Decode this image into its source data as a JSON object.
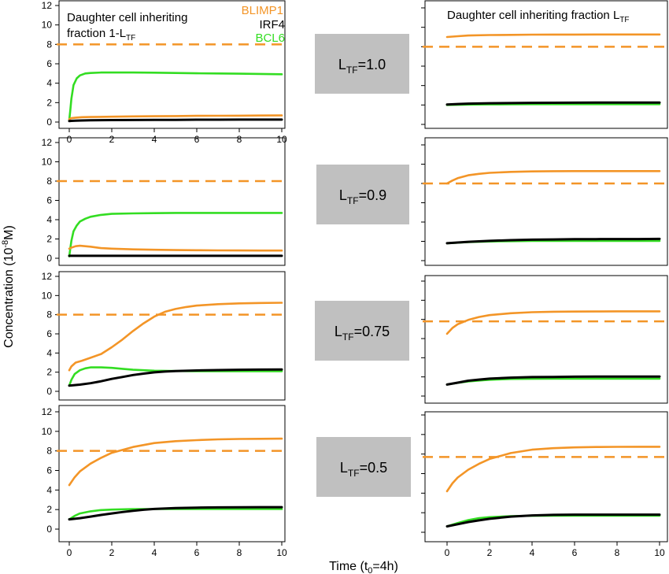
{
  "figure": {
    "ylabel_main": "Concentration (10",
    "ylabel_sup": "-8",
    "ylabel_end": "M)",
    "xlabel_main": "Time (t",
    "xlabel_sub": "0",
    "xlabel_end": "=4h)",
    "left_column_title_line1": "Daughter cell inheriting",
    "left_column_title_line2_main": "fraction 1-L",
    "left_column_title_line2_sub": "TF",
    "right_column_title_main": "Daughter cell inheriting fraction L",
    "right_column_title_sub": "TF"
  },
  "legend": [
    {
      "label": "BLIMP1",
      "color": "#F39527"
    },
    {
      "label": "IRF4",
      "color": "#000000"
    },
    {
      "label": "BCL6",
      "color": "#33DD22"
    }
  ],
  "colors": {
    "blimp1": "#F39527",
    "irf4": "#000000",
    "bcl6": "#33DD22",
    "threshold": "#F39527",
    "label_box": "#C0C0C0"
  },
  "row_labels": [
    {
      "prefix": "L",
      "sub": "TF",
      "value": "=1.0"
    },
    {
      "prefix": "L",
      "sub": "TF",
      "value": "=0.9"
    },
    {
      "prefix": "L",
      "sub": "TF",
      "value": "=0.75"
    },
    {
      "prefix": "L",
      "sub": "TF",
      "value": "=0.5"
    }
  ],
  "chart_data": [
    {
      "panel": "row1-left",
      "type": "line",
      "xlim": [
        0,
        10
      ],
      "ylim": [
        0,
        12
      ],
      "x_ticks": [
        "0",
        "2",
        "4",
        "6",
        "8",
        "10"
      ],
      "y_ticks": [
        "0",
        "2",
        "4",
        "6",
        "8",
        "10",
        "12"
      ],
      "threshold": {
        "name": "BLIMP1 threshold",
        "y": 8,
        "style": "dashed"
      },
      "series": [
        {
          "name": "BLIMP1",
          "x": [
            0,
            0.1,
            0.3,
            0.6,
            1,
            2,
            3,
            4,
            5,
            6,
            7,
            8,
            9,
            10
          ],
          "y": [
            0.3,
            0.4,
            0.45,
            0.5,
            0.52,
            0.55,
            0.58,
            0.6,
            0.62,
            0.64,
            0.65,
            0.66,
            0.67,
            0.68
          ]
        },
        {
          "name": "IRF4",
          "x": [
            0,
            0.1,
            0.3,
            0.6,
            1,
            2,
            3,
            4,
            5,
            6,
            7,
            8,
            9,
            10
          ],
          "y": [
            0.1,
            0.12,
            0.14,
            0.16,
            0.18,
            0.2,
            0.21,
            0.22,
            0.23,
            0.24,
            0.24,
            0.25,
            0.25,
            0.25
          ]
        },
        {
          "name": "BCL6",
          "x": [
            0,
            0.05,
            0.1,
            0.2,
            0.35,
            0.5,
            0.75,
            1,
            1.5,
            2,
            3,
            4,
            5,
            6,
            7,
            8,
            9,
            10
          ],
          "y": [
            0.2,
            1.2,
            2.4,
            3.8,
            4.5,
            4.8,
            5,
            5.05,
            5.1,
            5.1,
            5.1,
            5.08,
            5.05,
            5.02,
            5,
            4.98,
            4.95,
            4.92
          ]
        }
      ]
    },
    {
      "panel": "row1-right",
      "type": "line",
      "xlim": [
        0,
        10
      ],
      "ylim": [
        0,
        12
      ],
      "x_ticks": [],
      "y_ticks": [],
      "threshold": {
        "name": "BLIMP1 threshold",
        "y": 8,
        "style": "dashed"
      },
      "series": [
        {
          "name": "BLIMP1",
          "x": [
            0,
            0.5,
            1,
            2,
            3,
            4,
            5,
            6,
            7,
            8,
            9,
            10
          ],
          "y": [
            9.0,
            9.08,
            9.15,
            9.2,
            9.22,
            9.24,
            9.25,
            9.25,
            9.26,
            9.26,
            9.26,
            9.26
          ]
        },
        {
          "name": "IRF4",
          "x": [
            0,
            0.5,
            1,
            2,
            3,
            4,
            5,
            6,
            7,
            8,
            9,
            10
          ],
          "y": [
            2.05,
            2.1,
            2.14,
            2.18,
            2.2,
            2.22,
            2.23,
            2.24,
            2.25,
            2.25,
            2.25,
            2.25
          ]
        },
        {
          "name": "BCL6",
          "x": [
            0,
            0.5,
            1,
            2,
            3,
            4,
            5,
            6,
            7,
            8,
            9,
            10
          ],
          "y": [
            2.0,
            2.02,
            2.04,
            2.06,
            2.07,
            2.08,
            2.08,
            2.08,
            2.08,
            2.08,
            2.08,
            2.08
          ]
        }
      ]
    },
    {
      "panel": "row2-left",
      "type": "line",
      "xlim": [
        0,
        10
      ],
      "ylim": [
        0,
        12
      ],
      "x_ticks": [],
      "y_ticks": [
        "0",
        "2",
        "4",
        "6",
        "8",
        "10",
        "12"
      ],
      "threshold": {
        "name": "BLIMP1 threshold",
        "y": 8,
        "style": "dashed"
      },
      "series": [
        {
          "name": "BLIMP1",
          "x": [
            0,
            0.1,
            0.3,
            0.5,
            1,
            1.5,
            2,
            3,
            4,
            5,
            6,
            7,
            8,
            9,
            10
          ],
          "y": [
            1.0,
            1.1,
            1.25,
            1.3,
            1.2,
            1.05,
            1.0,
            0.92,
            0.88,
            0.85,
            0.83,
            0.82,
            0.81,
            0.8,
            0.8
          ]
        },
        {
          "name": "IRF4",
          "x": [
            0,
            2,
            4,
            6,
            8,
            10
          ],
          "y": [
            0.25,
            0.25,
            0.25,
            0.25,
            0.25,
            0.25
          ]
        },
        {
          "name": "BCL6",
          "x": [
            0,
            0.05,
            0.1,
            0.2,
            0.35,
            0.5,
            0.75,
            1,
            1.5,
            2,
            3,
            4,
            5,
            6,
            7,
            8,
            9,
            10
          ],
          "y": [
            0.2,
            1.0,
            1.8,
            2.8,
            3.4,
            3.8,
            4.1,
            4.3,
            4.5,
            4.6,
            4.65,
            4.68,
            4.7,
            4.7,
            4.7,
            4.7,
            4.7,
            4.7
          ]
        }
      ]
    },
    {
      "panel": "row2-right",
      "type": "line",
      "xlim": [
        0,
        10
      ],
      "ylim": [
        0,
        12
      ],
      "x_ticks": [],
      "y_ticks": [],
      "threshold": {
        "name": "BLIMP1 threshold",
        "y": 8,
        "style": "dashed"
      },
      "series": [
        {
          "name": "BLIMP1",
          "x": [
            0,
            0.25,
            0.5,
            1,
            1.5,
            2,
            3,
            4,
            5,
            6,
            7,
            8,
            9,
            10
          ],
          "y": [
            8.0,
            8.3,
            8.55,
            8.85,
            9.0,
            9.1,
            9.2,
            9.25,
            9.27,
            9.28,
            9.28,
            9.28,
            9.28,
            9.28
          ]
        },
        {
          "name": "IRF4",
          "x": [
            0,
            0.5,
            1,
            2,
            3,
            4,
            5,
            6,
            7,
            8,
            9,
            10
          ],
          "y": [
            1.8,
            1.88,
            1.95,
            2.05,
            2.12,
            2.17,
            2.2,
            2.22,
            2.23,
            2.24,
            2.24,
            2.25
          ]
        },
        {
          "name": "BCL6",
          "x": [
            0,
            0.5,
            1,
            2,
            3,
            4,
            5,
            6,
            7,
            8,
            9,
            10
          ],
          "y": [
            1.8,
            1.86,
            1.92,
            1.98,
            2.02,
            2.04,
            2.05,
            2.05,
            2.05,
            2.05,
            2.05,
            2.05
          ]
        }
      ]
    },
    {
      "panel": "row3-left",
      "type": "line",
      "xlim": [
        0,
        10
      ],
      "ylim": [
        0,
        12
      ],
      "x_ticks": [],
      "y_ticks": [
        "0",
        "2",
        "4",
        "6",
        "8",
        "10",
        "12"
      ],
      "threshold": {
        "name": "BLIMP1 threshold",
        "y": 8,
        "style": "dashed"
      },
      "series": [
        {
          "name": "BLIMP1",
          "x": [
            0,
            0.1,
            0.3,
            0.6,
            1,
            1.5,
            2,
            2.5,
            3,
            3.5,
            4,
            4.5,
            5,
            5.5,
            6,
            7,
            8,
            9,
            10
          ],
          "y": [
            2.2,
            2.6,
            3.0,
            3.2,
            3.5,
            3.9,
            4.6,
            5.4,
            6.3,
            7.1,
            7.8,
            8.3,
            8.6,
            8.8,
            8.95,
            9.1,
            9.18,
            9.22,
            9.25
          ]
        },
        {
          "name": "IRF4",
          "x": [
            0,
            0.5,
            1,
            1.5,
            2,
            2.5,
            3,
            3.5,
            4,
            4.5,
            5,
            6,
            7,
            8,
            9,
            10
          ],
          "y": [
            0.6,
            0.7,
            0.85,
            1.05,
            1.3,
            1.5,
            1.7,
            1.85,
            1.98,
            2.06,
            2.12,
            2.18,
            2.22,
            2.25,
            2.27,
            2.28
          ]
        },
        {
          "name": "BCL6",
          "x": [
            0,
            0.1,
            0.25,
            0.5,
            0.75,
            1,
            1.5,
            2,
            2.5,
            3,
            4,
            5,
            6,
            7,
            8,
            9,
            10
          ],
          "y": [
            0.6,
            1.2,
            1.8,
            2.2,
            2.4,
            2.5,
            2.5,
            2.45,
            2.35,
            2.25,
            2.15,
            2.12,
            2.1,
            2.1,
            2.1,
            2.1,
            2.1
          ]
        }
      ]
    },
    {
      "panel": "row3-right",
      "type": "line",
      "xlim": [
        0,
        10
      ],
      "ylim": [
        0,
        12
      ],
      "x_ticks": [],
      "y_ticks": [],
      "threshold": {
        "name": "BLIMP1 threshold",
        "y": 7.8,
        "style": "dashed"
      },
      "series": [
        {
          "name": "BLIMP1",
          "x": [
            0,
            0.25,
            0.5,
            1,
            1.5,
            2,
            3,
            4,
            5,
            6,
            7,
            8,
            9,
            10
          ],
          "y": [
            6.5,
            7.1,
            7.5,
            7.95,
            8.25,
            8.45,
            8.65,
            8.75,
            8.8,
            8.82,
            8.83,
            8.84,
            8.84,
            8.84
          ]
        },
        {
          "name": "IRF4",
          "x": [
            0,
            0.5,
            1,
            1.5,
            2,
            3,
            4,
            5,
            6,
            7,
            8,
            9,
            10
          ],
          "y": [
            1.2,
            1.4,
            1.6,
            1.72,
            1.82,
            1.92,
            1.98,
            2.0,
            2.02,
            2.03,
            2.03,
            2.03,
            2.03
          ]
        },
        {
          "name": "BCL6",
          "x": [
            0,
            0.5,
            1,
            1.5,
            2,
            3,
            4,
            5,
            6,
            7,
            8,
            9,
            10
          ],
          "y": [
            1.2,
            1.38,
            1.52,
            1.62,
            1.7,
            1.78,
            1.8,
            1.82,
            1.82,
            1.82,
            1.82,
            1.82,
            1.82
          ]
        }
      ]
    },
    {
      "panel": "row4-left",
      "type": "line",
      "xlim": [
        0,
        10
      ],
      "ylim": [
        0,
        12
      ],
      "x_ticks": [
        "0",
        "2",
        "4",
        "6",
        "8",
        "10"
      ],
      "y_ticks": [
        "0",
        "2",
        "4",
        "6",
        "8",
        "10",
        "12"
      ],
      "threshold": {
        "name": "BLIMP1 threshold",
        "y": 8,
        "style": "dashed"
      },
      "series": [
        {
          "name": "BLIMP1",
          "x": [
            0,
            0.25,
            0.5,
            1,
            1.5,
            2,
            3,
            4,
            5,
            6,
            7,
            8,
            9,
            10
          ],
          "y": [
            4.5,
            5.3,
            5.9,
            6.7,
            7.3,
            7.8,
            8.4,
            8.8,
            9.0,
            9.1,
            9.18,
            9.22,
            9.24,
            9.25
          ]
        },
        {
          "name": "IRF4",
          "x": [
            0,
            0.5,
            1,
            1.5,
            2,
            2.5,
            3,
            3.5,
            4,
            5,
            6,
            7,
            8,
            9,
            10
          ],
          "y": [
            1.0,
            1.12,
            1.28,
            1.45,
            1.6,
            1.75,
            1.88,
            1.98,
            2.06,
            2.16,
            2.2,
            2.22,
            2.24,
            2.25,
            2.25
          ]
        },
        {
          "name": "BCL6",
          "x": [
            0,
            0.25,
            0.5,
            1,
            1.5,
            2,
            3,
            4,
            5,
            6,
            7,
            8,
            9,
            10
          ],
          "y": [
            1.0,
            1.35,
            1.6,
            1.82,
            1.95,
            2.0,
            2.05,
            2.05,
            2.05,
            2.05,
            2.05,
            2.05,
            2.05,
            2.05
          ]
        }
      ]
    },
    {
      "panel": "row4-right",
      "type": "line",
      "xlim": [
        0,
        10
      ],
      "ylim": [
        0,
        12
      ],
      "x_ticks": [
        "0",
        "2",
        "4",
        "6",
        "8",
        "10"
      ],
      "y_ticks": [],
      "threshold": {
        "name": "BLIMP1 threshold",
        "y": 7.7,
        "style": "dashed"
      },
      "series": [
        {
          "name": "BLIMP1",
          "x": [
            0,
            0.25,
            0.5,
            1,
            1.5,
            2,
            3,
            4,
            5,
            6,
            7,
            8,
            9,
            10
          ],
          "y": [
            4.2,
            5.0,
            5.6,
            6.4,
            7.0,
            7.5,
            8.1,
            8.45,
            8.6,
            8.68,
            8.72,
            8.74,
            8.75,
            8.75
          ]
        },
        {
          "name": "IRF4",
          "x": [
            0,
            0.5,
            1,
            1.5,
            2,
            3,
            4,
            5,
            6,
            7,
            8,
            9,
            10
          ],
          "y": [
            0.6,
            0.82,
            1.05,
            1.22,
            1.38,
            1.6,
            1.72,
            1.78,
            1.8,
            1.8,
            1.8,
            1.8,
            1.8
          ]
        },
        {
          "name": "BCL6",
          "x": [
            0,
            0.5,
            1,
            1.5,
            2,
            3,
            4,
            5,
            6,
            7,
            8,
            9,
            10
          ],
          "y": [
            0.6,
            0.95,
            1.25,
            1.45,
            1.55,
            1.65,
            1.68,
            1.7,
            1.7,
            1.7,
            1.7,
            1.7,
            1.7
          ]
        }
      ]
    }
  ]
}
